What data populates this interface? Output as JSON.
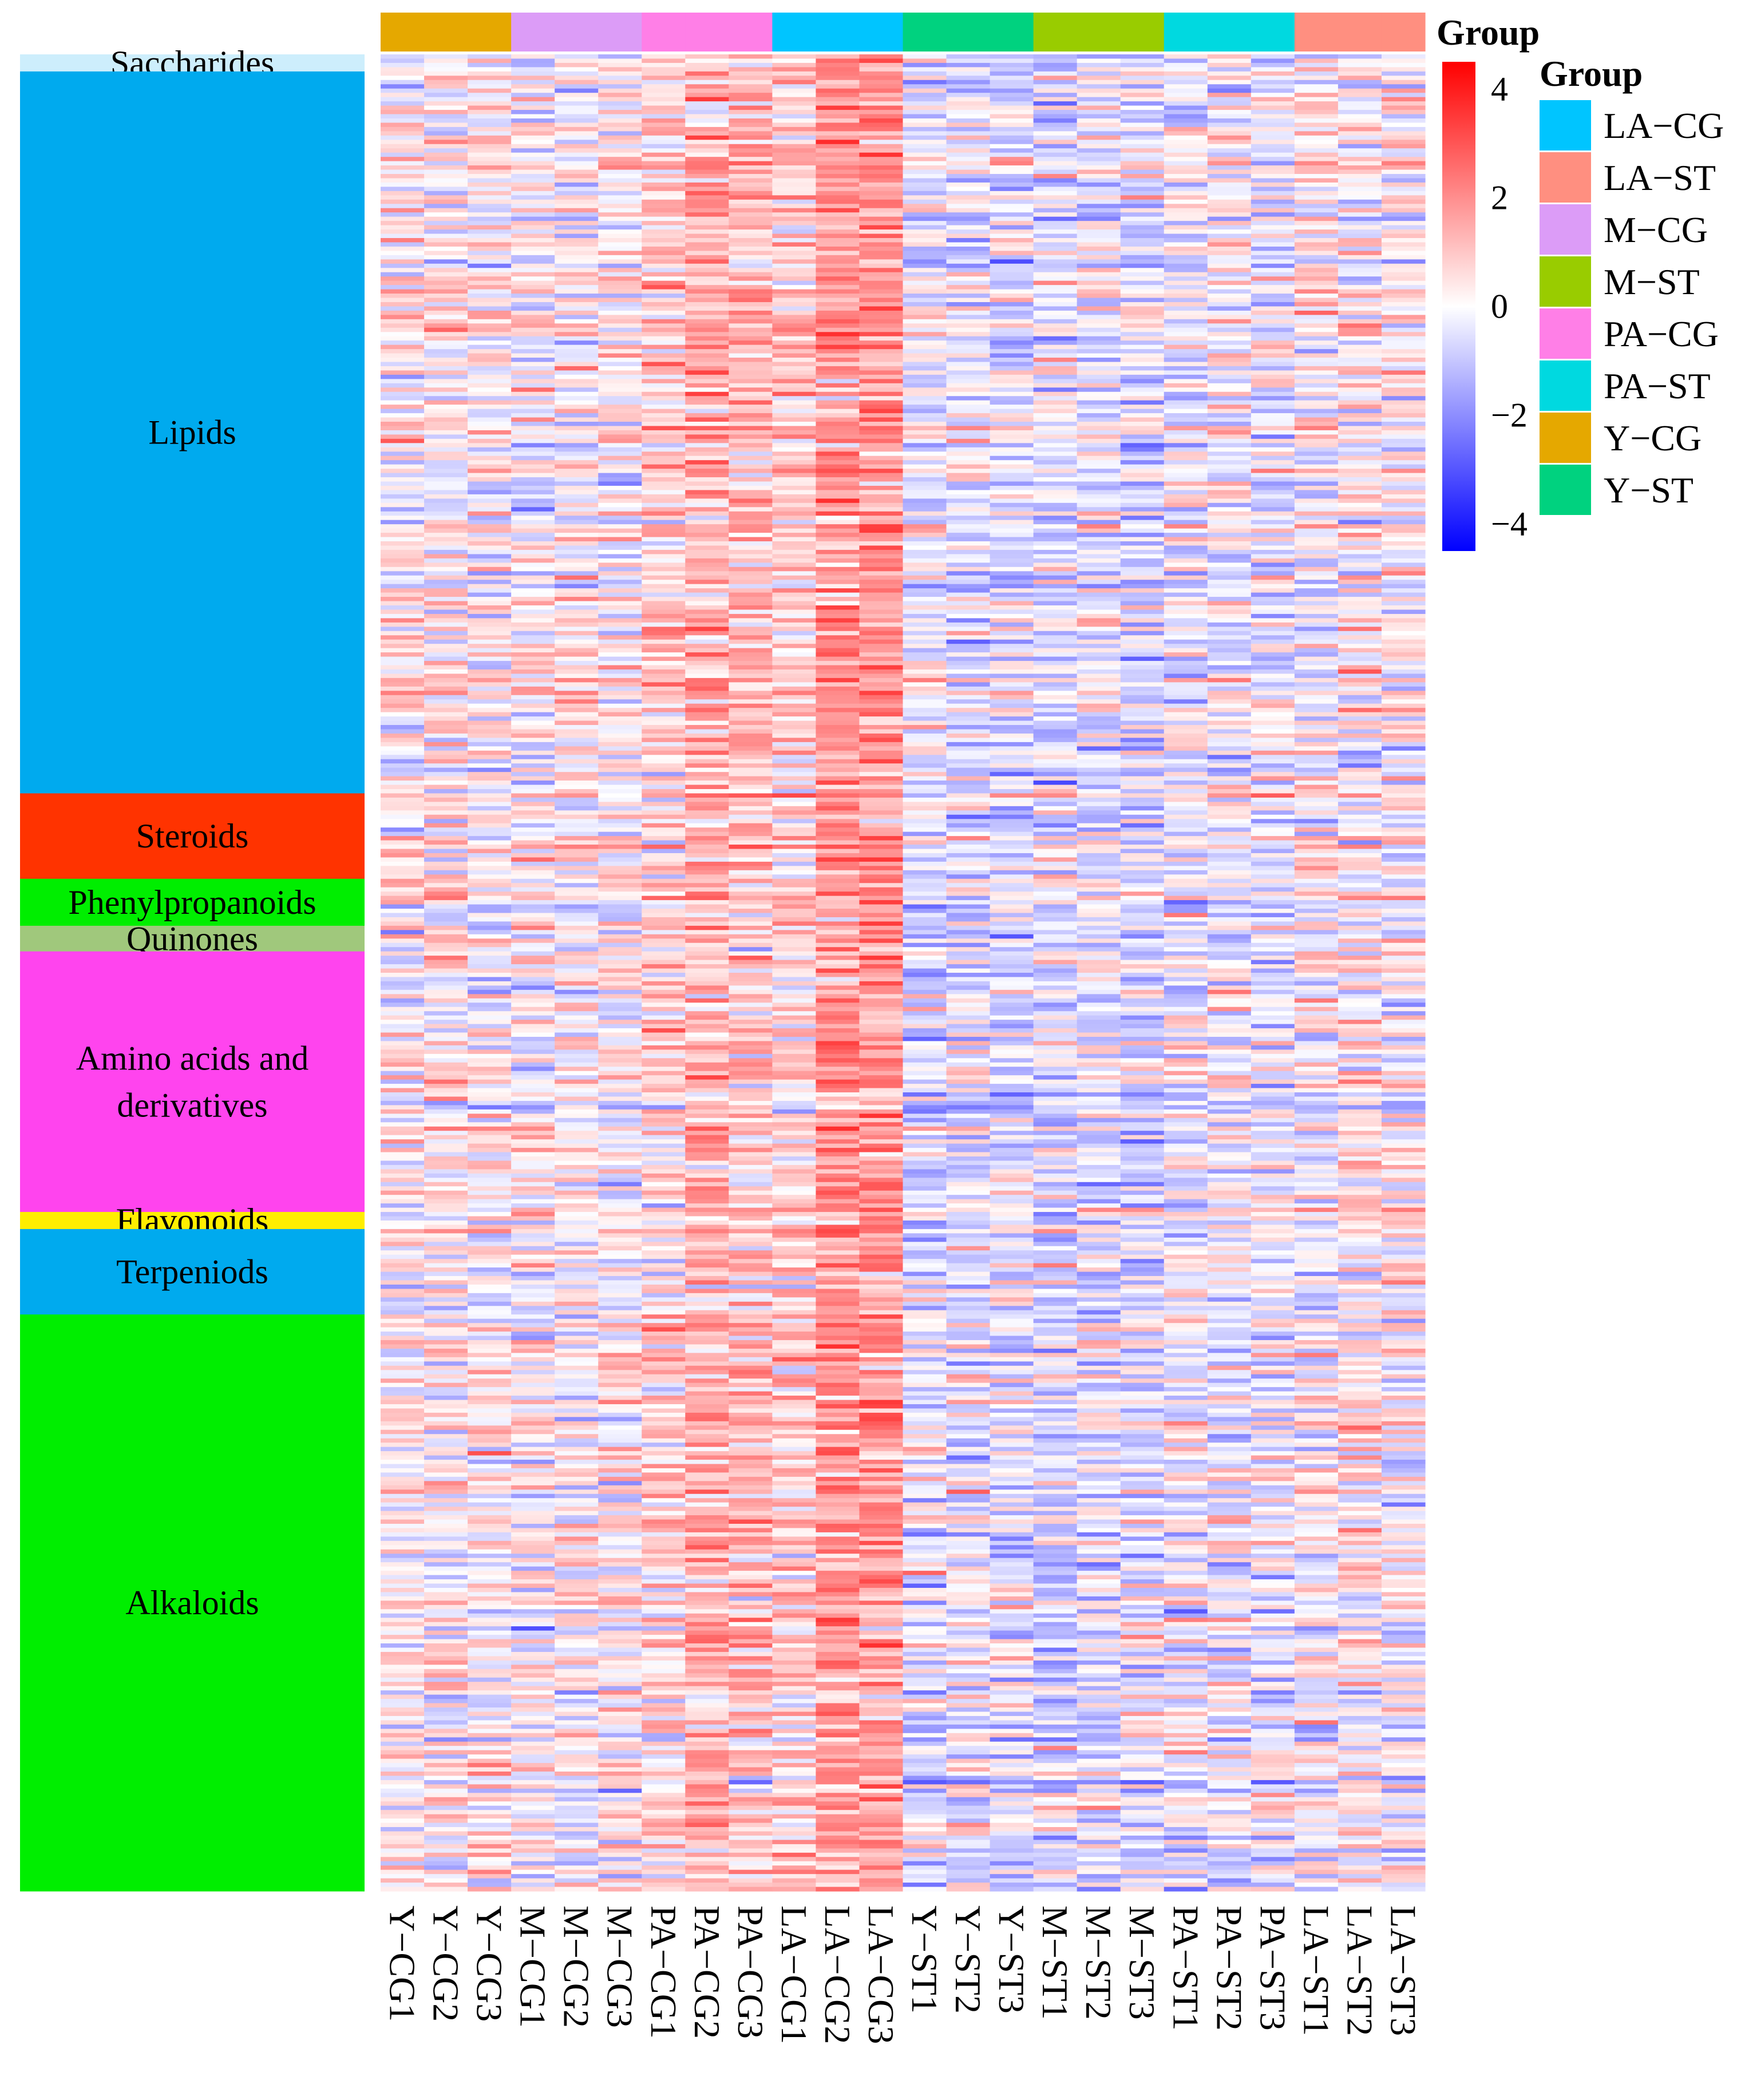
{
  "chart_data": {
    "type": "heatmap",
    "title": "",
    "samples": [
      "Y−CG1",
      "Y−CG2",
      "Y−CG3",
      "M−CG1",
      "M−CG2",
      "M−CG3",
      "PA−CG1",
      "PA−CG2",
      "PA−CG3",
      "LA−CG1",
      "LA−CG2",
      "LA−CG3",
      "Y−ST1",
      "Y−ST2",
      "Y−ST3",
      "M−ST1",
      "M−ST2",
      "M−ST3",
      "PA−ST1",
      "PA−ST2",
      "PA−ST3",
      "LA−ST1",
      "LA−ST2",
      "LA−ST3"
    ],
    "sample_groups": [
      "Y−CG",
      "Y−CG",
      "Y−CG",
      "M−CG",
      "M−CG",
      "M−CG",
      "PA−CG",
      "PA−CG",
      "PA−CG",
      "LA−CG",
      "LA−CG",
      "LA−CG",
      "Y−ST",
      "Y−ST",
      "Y−ST",
      "M−ST",
      "M−ST",
      "M−ST",
      "PA−ST",
      "PA−ST",
      "PA−ST",
      "LA−ST",
      "LA−ST",
      "LA−ST"
    ],
    "group_bar_label": "Group",
    "group_legend": {
      "title": "Group",
      "entries": [
        {
          "label": "LA−CG",
          "color": "#00c5ff"
        },
        {
          "label": "LA−ST",
          "color": "#ff8f80"
        },
        {
          "label": "M−CG",
          "color": "#dc9cf7"
        },
        {
          "label": "M−ST",
          "color": "#99cc00"
        },
        {
          "label": "PA−CG",
          "color": "#ff7fe7"
        },
        {
          "label": "PA−ST",
          "color": "#00d9e0"
        },
        {
          "label": "Y−CG",
          "color": "#e5a800"
        },
        {
          "label": "Y−ST",
          "color": "#00d27f"
        }
      ]
    },
    "color_scale": {
      "min": -4.5,
      "max": 4.5,
      "low_color": "#0000ff",
      "mid_color": "#ffffff",
      "high_color": "#ff0000",
      "ticks": [
        4,
        2,
        0,
        -2,
        -4
      ],
      "tick_labels": [
        "4",
        "2",
        "0",
        "−2",
        "−4"
      ]
    },
    "row_count": 430,
    "categories": [
      {
        "name": "Saccharides",
        "rows": 4,
        "color": "#cdeefc",
        "label_lines": [
          "Saccharides"
        ]
      },
      {
        "name": "Lipids",
        "rows": 169,
        "color": "#00aaee",
        "label_lines": [
          "Lipids"
        ]
      },
      {
        "name": "Steroids",
        "rows": 20,
        "color": "#ff3300",
        "label_lines": [
          "Steroids"
        ]
      },
      {
        "name": "Phenylpropanoids",
        "rows": 11,
        "color": "#00ee00",
        "label_lines": [
          "Phenylpropanoids"
        ]
      },
      {
        "name": "Quinones",
        "rows": 6,
        "color": "#a0c87c",
        "label_lines": [
          "Quinones"
        ]
      },
      {
        "name": "Amino acids and derivatives",
        "rows": 61,
        "color": "#ff44ee",
        "label_lines": [
          "Amino acids and",
          "derivatives"
        ]
      },
      {
        "name": "Flavonoids",
        "rows": 4,
        "color": "#ffee00",
        "label_lines": [
          "Flavonoids"
        ]
      },
      {
        "name": "Terpeniods",
        "rows": 20,
        "color": "#00aaee",
        "label_lines": [
          "Terpeniods"
        ]
      },
      {
        "name": "Alkaloids",
        "rows": 135,
        "color": "#00ee00",
        "label_lines": [
          "Alkaloids"
        ]
      }
    ],
    "value_model": {
      "note": "Row-scaled (z-score) intensities; approximate per-sample mean level read from the figure",
      "sample_mean": [
        0.15,
        0.2,
        0.1,
        -0.05,
        0.05,
        0.1,
        0.55,
        1.0,
        0.85,
        0.6,
        1.5,
        1.55,
        -0.35,
        -0.4,
        -0.45,
        -0.4,
        -0.35,
        -0.45,
        -0.2,
        -0.15,
        -0.2,
        0.05,
        0.15,
        0.1
      ],
      "noise_sd": 0.75
    }
  }
}
